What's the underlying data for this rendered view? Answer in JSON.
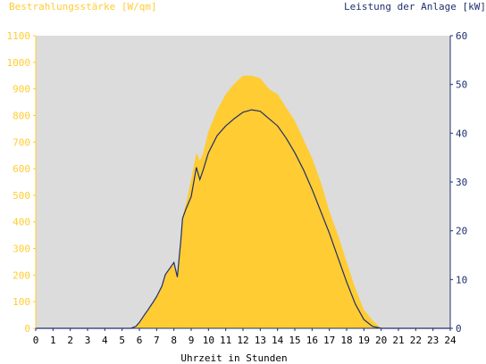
{
  "chart_data": {
    "type": "area",
    "left_axis_title": "Bestrahlungsstärke [W/qm]",
    "right_axis_title": "Leistung der Anlage [kW]",
    "xlabel": "Uhrzeit in Stunden",
    "x_ticks": [
      "0",
      "1",
      "2",
      "3",
      "4",
      "5",
      "6",
      "7",
      "8",
      "9",
      "10",
      "11",
      "12",
      "13",
      "14",
      "15",
      "16",
      "17",
      "18",
      "19",
      "20",
      "21",
      "22",
      "23",
      "24"
    ],
    "y_left_ticks": [
      "0",
      "100",
      "200",
      "300",
      "400",
      "500",
      "600",
      "700",
      "800",
      "900",
      "1000",
      "1100"
    ],
    "y_right_ticks": [
      "0",
      "10",
      "20",
      "30",
      "40",
      "50",
      "60"
    ],
    "xlim": [
      0,
      24
    ],
    "ylim_left": [
      0,
      1100
    ],
    "ylim_right": [
      0,
      60
    ],
    "grid": false,
    "colors": {
      "plot_background": "#dcdcdc",
      "irradiance_fill": "#ffcc33",
      "power_line": "#1f2f6f",
      "left_axis_text": "#ffcc33",
      "right_axis_text": "#1f2f6f",
      "axis_text": "#000000"
    },
    "series": [
      {
        "unit": "W/qm",
        "axis": "left",
        "style": "area",
        "x": [
          0,
          5.5,
          5.8,
          6.0,
          6.3,
          6.5,
          6.8,
          7.0,
          7.3,
          7.5,
          7.8,
          8.0,
          8.2,
          8.4,
          8.5,
          8.7,
          9.0,
          9.3,
          9.5,
          9.7,
          10.0,
          10.5,
          11.0,
          11.5,
          12.0,
          12.5,
          13.0,
          13.5,
          14.0,
          14.5,
          15.0,
          15.5,
          16.0,
          16.5,
          17.0,
          17.5,
          18.0,
          18.5,
          19.0,
          19.5,
          20.0,
          24
        ],
        "y": [
          0,
          0,
          8,
          20,
          50,
          70,
          100,
          120,
          160,
          200,
          230,
          250,
          190,
          330,
          420,
          470,
          560,
          660,
          630,
          660,
          740,
          820,
          880,
          920,
          950,
          950,
          940,
          900,
          880,
          830,
          780,
          710,
          640,
          550,
          440,
          350,
          250,
          150,
          70,
          30,
          0,
          0
        ]
      },
      {
        "unit": "kW",
        "axis": "right",
        "style": "line",
        "x": [
          0,
          5.5,
          5.8,
          6.0,
          6.3,
          6.5,
          6.8,
          7.0,
          7.3,
          7.5,
          7.8,
          8.0,
          8.2,
          8.4,
          8.5,
          8.7,
          9.0,
          9.3,
          9.5,
          9.7,
          10.0,
          10.5,
          11.0,
          11.5,
          12.0,
          12.5,
          13.0,
          13.5,
          14.0,
          14.5,
          15.0,
          15.5,
          16.0,
          16.5,
          17.0,
          17.5,
          18.0,
          18.5,
          19.0,
          19.5,
          20.0,
          24
        ],
        "y": [
          0,
          0,
          0.4,
          1.2,
          2.8,
          3.8,
          5.4,
          6.5,
          8.6,
          11.0,
          12.5,
          13.5,
          10.5,
          18.0,
          22.5,
          24.5,
          27.0,
          33.0,
          30.5,
          32.5,
          36.0,
          39.5,
          41.5,
          43.0,
          44.3,
          44.8,
          44.5,
          43.0,
          41.5,
          39.0,
          36.0,
          32.5,
          28.5,
          24.0,
          19.5,
          14.5,
          9.5,
          5.0,
          1.8,
          0.4,
          0,
          0
        ]
      }
    ]
  }
}
